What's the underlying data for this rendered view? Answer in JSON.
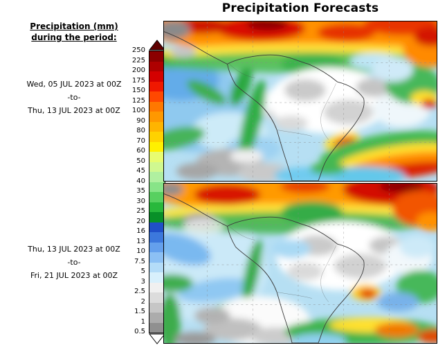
{
  "title": "Precipitation Forecasts",
  "legend": {
    "header_line1": "Precipitation (mm)",
    "header_line2": "during the period:",
    "levels": [
      "250",
      "225",
      "200",
      "175",
      "150",
      "125",
      "100",
      "90",
      "80",
      "70",
      "60",
      "50",
      "45",
      "40",
      "35",
      "30",
      "25",
      "20",
      "16",
      "13",
      "10",
      "7.5",
      "5",
      "3",
      "2.5",
      "2",
      "1.5",
      "1",
      "0.5"
    ],
    "arrow_top_color": "#5E0000",
    "arrow_bottom_color": "#FFFFFF",
    "band_colors": [
      "#8B0000",
      "#AE0000",
      "#D40000",
      "#F01800",
      "#FF4800",
      "#FF7800",
      "#FF9800",
      "#FFB400",
      "#FFD200",
      "#FFF000",
      "#E8FC70",
      "#D0F890",
      "#B0F0A0",
      "#88E488",
      "#58D060",
      "#28B83C",
      "#089028",
      "#2050C8",
      "#3C78DC",
      "#64A0EC",
      "#8CC0F4",
      "#B4DCF8",
      "#D8F0FC",
      "#F0F0F0",
      "#DCDCDC",
      "#C6C6C6",
      "#ACACAC",
      "#909090"
    ]
  },
  "periods": [
    {
      "start": "Wed, 05 JUL 2023 at 00Z",
      "separator": "-to-",
      "end": "Thu, 13 JUL 2023 at 00Z"
    },
    {
      "start": "Thu, 13 JUL 2023 at 00Z",
      "separator": "-to-",
      "end": "Fri, 21 JUL 2023 at 00Z"
    }
  ],
  "maps": [
    {
      "label": "week-1-precipitation-forecast"
    },
    {
      "label": "week-2-precipitation-forecast"
    }
  ]
}
